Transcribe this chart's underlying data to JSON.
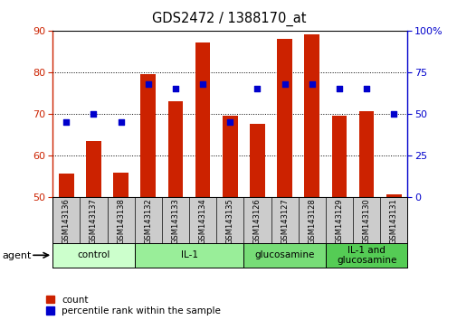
{
  "title": "GDS2472 / 1388170_at",
  "samples": [
    "GSM143136",
    "GSM143137",
    "GSM143138",
    "GSM143132",
    "GSM143133",
    "GSM143134",
    "GSM143135",
    "GSM143126",
    "GSM143127",
    "GSM143128",
    "GSM143129",
    "GSM143130",
    "GSM143131"
  ],
  "counts": [
    55.5,
    63.5,
    55.8,
    79.5,
    73.0,
    87.0,
    69.5,
    67.5,
    88.0,
    89.0,
    69.5,
    70.5,
    50.5
  ],
  "percentiles_right": [
    45,
    50,
    45,
    68,
    65,
    68,
    45,
    65,
    68,
    68,
    65,
    65,
    50
  ],
  "bar_bottom": 50,
  "ylim_left": [
    50,
    90
  ],
  "ylim_right": [
    0,
    100
  ],
  "yticks_left": [
    50,
    60,
    70,
    80,
    90
  ],
  "yticks_right": [
    0,
    25,
    50,
    75,
    100
  ],
  "bar_color": "#cc2200",
  "dot_color": "#0000cc",
  "groups": [
    {
      "label": "control",
      "start": 0,
      "end": 3,
      "color": "#ccffcc"
    },
    {
      "label": "IL-1",
      "start": 3,
      "end": 7,
      "color": "#99ee99"
    },
    {
      "label": "glucosamine",
      "start": 7,
      "end": 10,
      "color": "#77dd77"
    },
    {
      "label": "IL-1 and\nglucosamine",
      "start": 10,
      "end": 13,
      "color": "#55cc55"
    }
  ],
  "left_axis_color": "#cc2200",
  "right_axis_color": "#0000cc",
  "grid_color": "#000000",
  "background_color": "#ffffff",
  "agent_label": "agent",
  "legend_count_label": "count",
  "legend_percentile_label": "percentile rank within the sample",
  "tick_bg_color": "#cccccc",
  "plot_bg_color": "#ffffff"
}
